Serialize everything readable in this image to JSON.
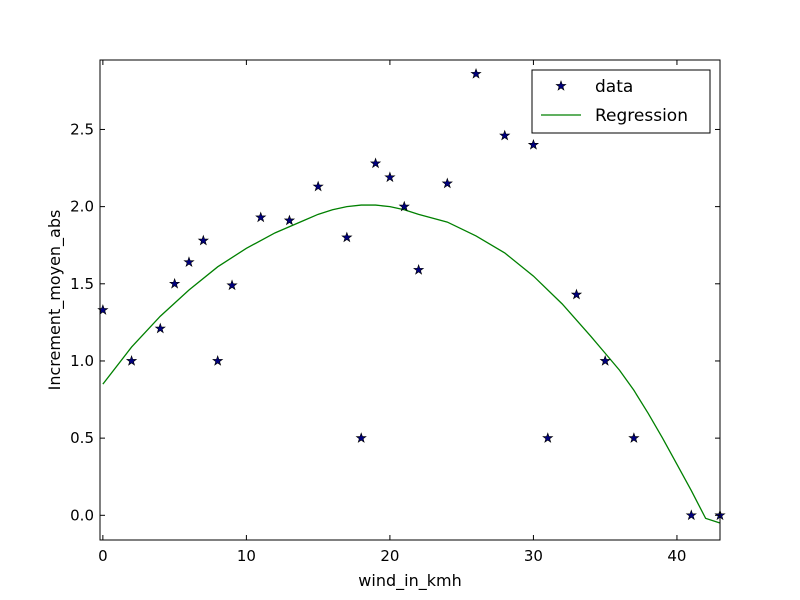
{
  "chart_data": {
    "type": "scatter",
    "xlabel": "wind_in_kmh",
    "ylabel": "Increment_moyen_abs",
    "xlim": [
      -0.2,
      43
    ],
    "ylim": [
      -0.16,
      2.95
    ],
    "xticks": [
      0,
      10,
      20,
      30,
      40
    ],
    "yticks": [
      0.0,
      0.5,
      1.0,
      1.5,
      2.0,
      2.5
    ],
    "xtick_labels": [
      "0",
      "10",
      "20",
      "30",
      "40"
    ],
    "ytick_labels": [
      "0.0",
      "0.5",
      "1.0",
      "1.5",
      "2.0",
      "2.5"
    ],
    "grid": false,
    "legend_position": "top-right",
    "series": [
      {
        "name": "data",
        "kind": "scatter",
        "marker": "star",
        "color": "#00007f",
        "x": [
          0,
          2,
          4,
          5,
          6,
          7,
          8,
          9,
          11,
          13,
          15,
          17,
          18,
          19,
          20,
          21,
          22,
          24,
          26,
          28,
          30,
          31,
          33,
          35,
          37,
          41,
          43
        ],
        "y": [
          1.33,
          1.0,
          1.21,
          1.5,
          1.64,
          1.78,
          1.0,
          1.49,
          1.93,
          1.91,
          2.13,
          1.8,
          0.5,
          2.28,
          2.19,
          2.0,
          1.59,
          2.15,
          2.86,
          2.46,
          2.4,
          0.5,
          1.43,
          1.0,
          0.5,
          0.0,
          0.0
        ]
      },
      {
        "name": "Regression",
        "kind": "line",
        "color": "#008000",
        "x": [
          0,
          2,
          4,
          6,
          8,
          10,
          12,
          14,
          15,
          16,
          17,
          18,
          19,
          20,
          21,
          22,
          24,
          26,
          28,
          30,
          32,
          34,
          35,
          36,
          37,
          38,
          39,
          40,
          41,
          42,
          43
        ],
        "y": [
          0.85,
          1.09,
          1.29,
          1.46,
          1.61,
          1.73,
          1.83,
          1.91,
          1.95,
          1.98,
          2.0,
          2.01,
          2.01,
          2.0,
          1.98,
          1.95,
          1.9,
          1.81,
          1.7,
          1.55,
          1.37,
          1.16,
          1.05,
          0.94,
          0.81,
          0.66,
          0.5,
          0.33,
          0.16,
          -0.02,
          -0.05
        ]
      }
    ]
  }
}
